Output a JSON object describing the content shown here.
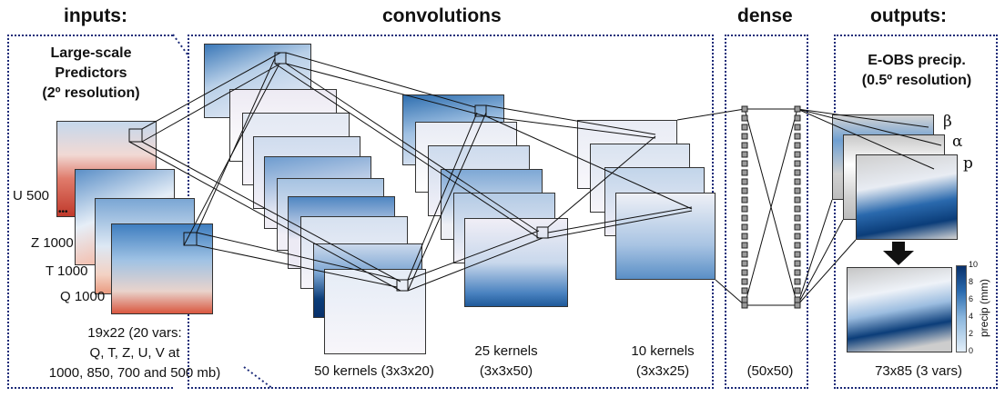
{
  "sections": {
    "inputs": "inputs:",
    "convolutions": "convolutions",
    "dense": "dense",
    "outputs": "outputs:"
  },
  "inputs": {
    "subtitle_lines": [
      "Large-scale",
      "Predictors",
      "(2º resolution)"
    ],
    "variables": [
      "U 500",
      "Z 1000",
      "T 1000",
      "Q 1000"
    ],
    "ellipsis": "•••",
    "caption_lines": [
      "19x22 (20 vars:",
      "Q, T, Z, U, V at",
      "1000, 850, 700 and 500 mb)"
    ]
  },
  "convolutions": {
    "layer1": "50 kernels (3x3x20)",
    "layer2_lines": [
      "25 kernels",
      "(3x3x50)"
    ],
    "layer3_lines": [
      "10 kernels",
      "(3x3x25)"
    ]
  },
  "dense": {
    "caption": "(50x50)"
  },
  "outputs": {
    "subtitle_lines": [
      "E-OBS precip.",
      "(0.5º resolution)"
    ],
    "params": [
      "β",
      "α",
      "p"
    ],
    "colorbar_label": "precip (mm)",
    "colorbar_ticks": [
      "10",
      "8",
      "6",
      "4",
      "2",
      "0"
    ],
    "caption": "73x85 (3 vars)"
  },
  "colors": {
    "section_border": "#1b2a78",
    "field_red": "#c0392b",
    "field_blue": "#2f6fb0",
    "field_light": "#e9e6f2",
    "precip_dark": "#08306b",
    "land_grey": "#c8c8c8"
  }
}
